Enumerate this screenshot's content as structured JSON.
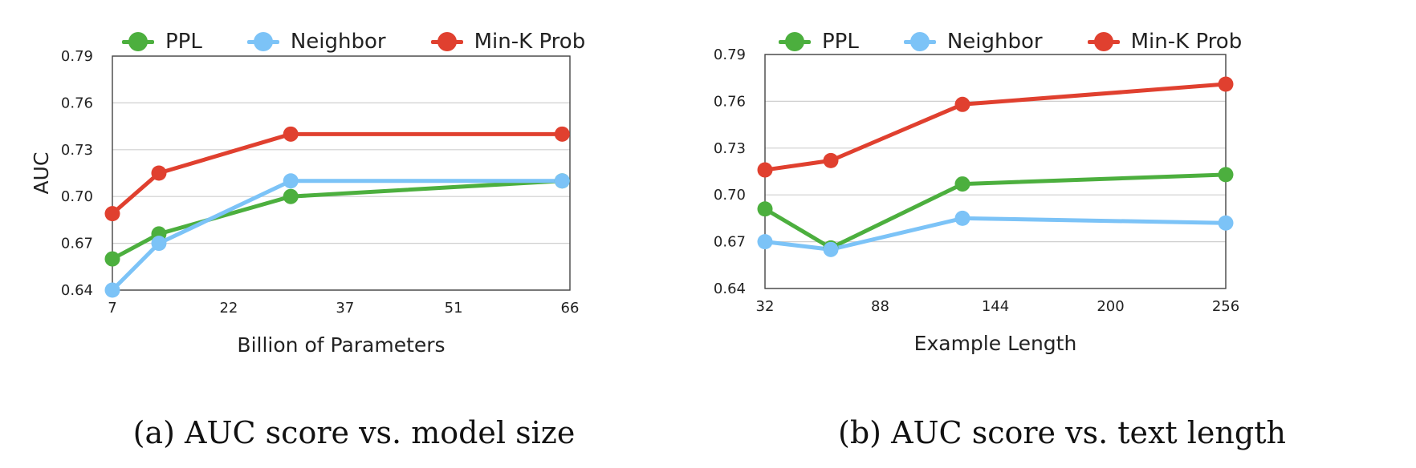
{
  "chart_data": [
    {
      "type": "line",
      "caption": "(a) AUC score vs. model size",
      "xlabel": "Billion of Parameters",
      "ylabel": "AUC",
      "x_ticks": [
        7,
        22,
        37,
        51,
        66
      ],
      "y_ticks": [
        "0.64",
        "0.67",
        "0.70",
        "0.73",
        "0.76",
        "0.79"
      ],
      "xlim": [
        7,
        66
      ],
      "ylim": [
        0.64,
        0.79
      ],
      "grid": "horizontal",
      "legend_position": "top",
      "x": [
        7,
        13,
        30,
        65
      ],
      "series": [
        {
          "name": "PPL",
          "color": "#4caf3e",
          "values": [
            0.66,
            0.676,
            0.7,
            0.71
          ]
        },
        {
          "name": "Neighbor",
          "color": "#7cc3f7",
          "values": [
            0.64,
            0.67,
            0.71,
            0.71
          ]
        },
        {
          "name": "Min-K Prob",
          "color": "#e0402f",
          "values": [
            0.689,
            0.715,
            0.74,
            0.74
          ]
        }
      ]
    },
    {
      "type": "line",
      "caption": "(b) AUC score vs. text length",
      "xlabel": "Example Length",
      "ylabel": "AUC",
      "x_ticks": [
        32,
        88,
        144,
        200,
        256
      ],
      "y_ticks": [
        "0.64",
        "0.67",
        "0.70",
        "0.73",
        "0.76",
        "0.79"
      ],
      "xlim": [
        32,
        256
      ],
      "ylim": [
        0.64,
        0.79
      ],
      "grid": "horizontal",
      "legend_position": "top",
      "x": [
        32,
        64,
        128,
        256
      ],
      "series": [
        {
          "name": "PPL",
          "color": "#4caf3e",
          "values": [
            0.691,
            0.666,
            0.707,
            0.713
          ]
        },
        {
          "name": "Neighbor",
          "color": "#7cc3f7",
          "values": [
            0.67,
            0.665,
            0.685,
            0.682
          ]
        },
        {
          "name": "Min-K Prob",
          "color": "#e0402f",
          "values": [
            0.716,
            0.722,
            0.758,
            0.771
          ]
        }
      ]
    }
  ]
}
